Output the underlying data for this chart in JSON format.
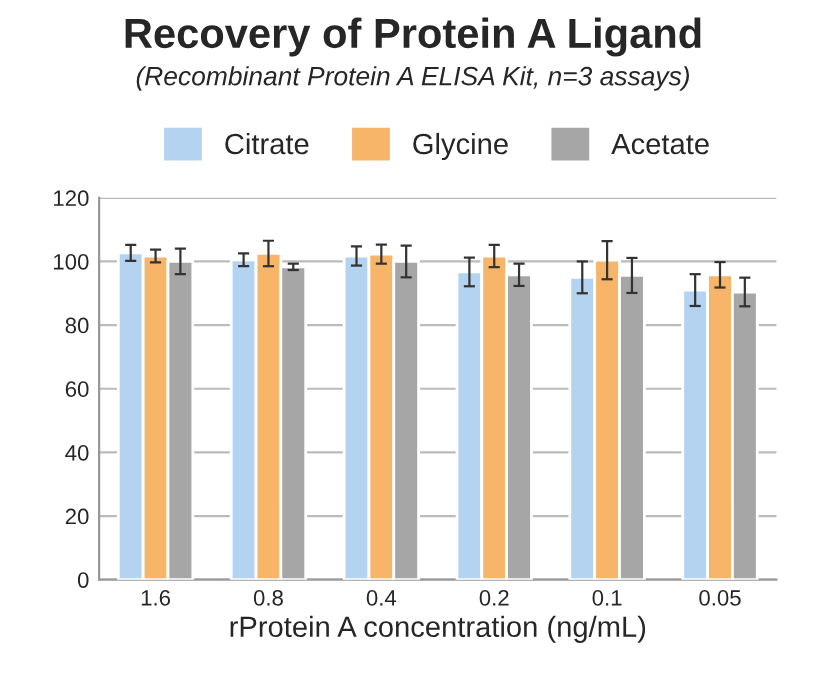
{
  "chart_data": {
    "type": "bar",
    "title": "Recovery of Protein A Ligand",
    "subtitle": "(Recombinant Protein A ELISA Kit, n=3 assays)",
    "xlabel": "rProtein A concentration (ng/mL)",
    "categories": [
      "1.6",
      "0.8",
      "0.4",
      "0.2",
      "0.1",
      "0.05"
    ],
    "series": [
      {
        "name": "Citrate",
        "color": "#b3d3f0",
        "values": [
          102.7,
          100.5,
          101.7,
          96.7,
          95,
          91
        ],
        "errors": [
          2.5,
          2,
          3,
          4.5,
          5,
          5
        ]
      },
      {
        "name": "Glycine",
        "color": "#f7b56a",
        "values": [
          101.7,
          102.5,
          102.3,
          101.7,
          100.4,
          95.8
        ],
        "errors": [
          2,
          4,
          3,
          3.5,
          6,
          4
        ]
      },
      {
        "name": "Acetate",
        "color": "#a6a6a6",
        "values": [
          100,
          98.3,
          100,
          95.8,
          95.6,
          90.4
        ],
        "errors": [
          4,
          1,
          5,
          3.5,
          5.5,
          4.5
        ]
      }
    ],
    "ylim": [
      0,
      120
    ],
    "yticks": [
      0,
      20,
      40,
      60,
      80,
      100,
      120
    ],
    "grid": "y",
    "legend": "top"
  }
}
